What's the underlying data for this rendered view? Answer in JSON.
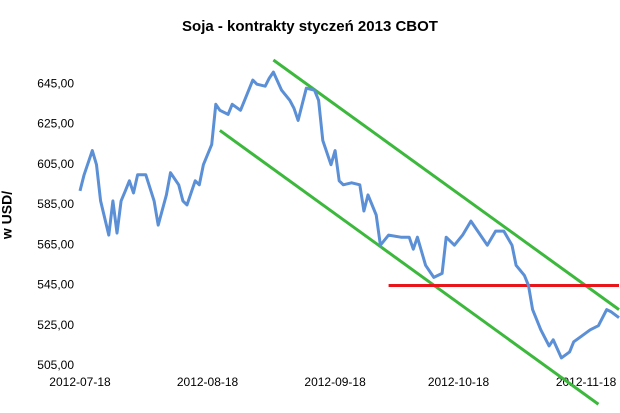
{
  "chart_data": {
    "type": "line",
    "title": "Soja - kontrakty styczeń 2013 CBOT",
    "y_label": "w USD/",
    "x": [
      "2012-07-18",
      "2012-07-19",
      "2012-07-21",
      "2012-07-22",
      "2012-07-23",
      "2012-07-25",
      "2012-07-26",
      "2012-07-27",
      "2012-07-28",
      "2012-07-29",
      "2012-07-30",
      "2012-07-31",
      "2012-08-01",
      "2012-08-03",
      "2012-08-05",
      "2012-08-06",
      "2012-08-08",
      "2012-08-09",
      "2012-08-11",
      "2012-08-12",
      "2012-08-13",
      "2012-08-15",
      "2012-08-16",
      "2012-08-17",
      "2012-08-19",
      "2012-08-20",
      "2012-08-21",
      "2012-08-23",
      "2012-08-24",
      "2012-08-26",
      "2012-08-27",
      "2012-08-29",
      "2012-08-30",
      "2012-09-01",
      "2012-09-02",
      "2012-09-03",
      "2012-09-05",
      "2012-09-07",
      "2012-09-08",
      "2012-09-09",
      "2012-09-11",
      "2012-09-13",
      "2012-09-14",
      "2012-09-15",
      "2012-09-17",
      "2012-09-18",
      "2012-09-19",
      "2012-09-20",
      "2012-09-22",
      "2012-09-24",
      "2012-09-25",
      "2012-09-26",
      "2012-09-28",
      "2012-09-29",
      "2012-10-01",
      "2012-10-04",
      "2012-10-06",
      "2012-10-07",
      "2012-10-08",
      "2012-10-10",
      "2012-10-12",
      "2012-10-14",
      "2012-10-15",
      "2012-10-17",
      "2012-10-19",
      "2012-10-21",
      "2012-10-23",
      "2012-10-25",
      "2012-10-27",
      "2012-10-29",
      "2012-10-31",
      "2012-11-01",
      "2012-11-03",
      "2012-11-04",
      "2012-11-05",
      "2012-11-07",
      "2012-11-09",
      "2012-11-10",
      "2012-11-12",
      "2012-11-14",
      "2012-11-15",
      "2012-11-17",
      "2012-11-19",
      "2012-11-21",
      "2012-11-23",
      "2012-11-24",
      "2012-11-26"
    ],
    "series": [
      {
        "name": "Soja",
        "color": "#5b8fd6",
        "values": [
          592,
          600,
          612,
          605,
          587,
          570,
          587,
          571,
          587,
          592,
          597,
          591,
          600,
          600,
          587,
          575,
          590,
          601,
          595,
          587,
          585,
          597,
          595,
          605,
          615,
          635,
          632,
          630,
          635,
          632,
          637,
          647,
          645,
          644,
          648,
          651,
          642,
          637,
          633,
          627,
          643,
          642,
          637,
          617,
          605,
          612,
          597,
          595,
          596,
          595,
          582,
          590,
          580,
          565,
          570,
          569,
          569,
          563,
          569,
          555,
          549,
          551,
          569,
          565,
          570,
          577,
          571,
          565,
          572,
          572,
          565,
          555,
          550,
          545,
          533,
          523,
          515,
          518,
          509,
          512,
          517,
          520,
          523,
          525,
          533,
          532,
          529
        ]
      }
    ],
    "xlim": [
      "2012-07-18",
      "2012-11-26"
    ],
    "xticks": [
      "2012-07-18",
      "2012-08-18",
      "2012-09-18",
      "2012-10-18",
      "2012-11-18"
    ],
    "ylim": [
      505,
      657
    ],
    "yticks": [
      {
        "value": 505,
        "label": "505,00"
      },
      {
        "value": 525,
        "label": "525,00"
      },
      {
        "value": 545,
        "label": "545,00"
      },
      {
        "value": 565,
        "label": "565,00"
      },
      {
        "value": 585,
        "label": "585,00"
      },
      {
        "value": 605,
        "label": "605,00"
      },
      {
        "value": 625,
        "label": "625,00"
      },
      {
        "value": 645,
        "label": "645,00"
      }
    ],
    "grid": false,
    "trend_lines": [
      {
        "color": "#3cb83c",
        "x": [
          "2012-09-03",
          "2012-11-26"
        ],
        "values": [
          657,
          533
        ]
      },
      {
        "color": "#3cb83c",
        "x": [
          "2012-08-21",
          "2012-11-21"
        ],
        "values": [
          622,
          486
        ]
      },
      {
        "color": "#e8161b",
        "x": [
          "2012-10-01",
          "2012-11-26"
        ],
        "values": [
          545,
          545
        ]
      }
    ]
  }
}
